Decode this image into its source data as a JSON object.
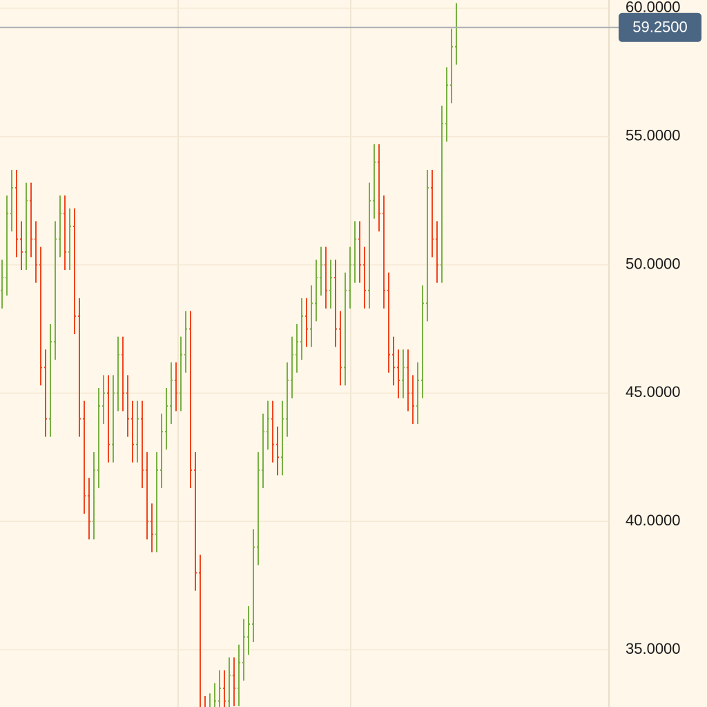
{
  "chart_data": {
    "type": "ohlc",
    "ylim": [
      32.77,
      60.32
    ],
    "yticks": [
      {
        "value": 35,
        "label": "35.0000"
      },
      {
        "value": 40,
        "label": "40.0000"
      },
      {
        "value": 45,
        "label": "45.0000"
      },
      {
        "value": 50,
        "label": "50.0000"
      },
      {
        "value": 55,
        "label": "55.0000"
      },
      {
        "value": 60,
        "label": "60.0000"
      }
    ],
    "grid": true,
    "up_color": "#78b043",
    "down_color": "#f0451f",
    "last_price": {
      "value": 59.25,
      "label": "59.2500"
    },
    "series": [
      {
        "values": [
          [
            49,
            50.2,
            48.3,
            49.5
          ],
          [
            49.5,
            52.7,
            48.8,
            52
          ],
          [
            52,
            53.7,
            51.3,
            53
          ],
          [
            53,
            53.7,
            50.3,
            51
          ],
          [
            51,
            51.7,
            49.8,
            50.5
          ],
          [
            50.5,
            53.2,
            49.8,
            52.5
          ],
          [
            52.5,
            53.2,
            50.3,
            51
          ],
          [
            51,
            51.7,
            49.3,
            50
          ],
          [
            50,
            50.7,
            45.3,
            46
          ],
          [
            46,
            46.7,
            43.3,
            44
          ],
          [
            44,
            47.7,
            43.3,
            47
          ],
          [
            47,
            51.7,
            46.3,
            51
          ],
          [
            51,
            52.7,
            50.3,
            52
          ],
          [
            52,
            52.7,
            49.8,
            50.5
          ],
          [
            50.5,
            52.2,
            49.8,
            51.5
          ],
          [
            51.5,
            52.2,
            47.3,
            48
          ],
          [
            48,
            48.7,
            43.3,
            44
          ],
          [
            44,
            44.7,
            40.3,
            41
          ],
          [
            41,
            41.7,
            39.3,
            40
          ],
          [
            40,
            42.7,
            39.3,
            42
          ],
          [
            42,
            45.2,
            41.3,
            44.5
          ],
          [
            44.5,
            45.7,
            43.8,
            45
          ],
          [
            45,
            45.7,
            42.3,
            43
          ],
          [
            43,
            45.7,
            42.3,
            45
          ],
          [
            45,
            47.2,
            44.3,
            46.5
          ],
          [
            46.5,
            47.2,
            44.3,
            45
          ],
          [
            45,
            45.7,
            43.3,
            44
          ],
          [
            44,
            44.7,
            42.3,
            43
          ],
          [
            43,
            44.7,
            42.3,
            44
          ],
          [
            44,
            44.7,
            41.3,
            42
          ],
          [
            42,
            42.7,
            39.3,
            40
          ],
          [
            40,
            40.7,
            38.8,
            39.5
          ],
          [
            39.5,
            42.7,
            38.8,
            42
          ],
          [
            42,
            44.2,
            41.3,
            43.5
          ],
          [
            43.5,
            45.2,
            42.8,
            44.5
          ],
          [
            44.5,
            46.2,
            43.8,
            45.5
          ],
          [
            45.5,
            46.2,
            44.3,
            45
          ],
          [
            45,
            47.2,
            44.3,
            46.5
          ],
          [
            46.5,
            48.2,
            45.8,
            47.5
          ],
          [
            47.5,
            48.2,
            41.3,
            42
          ],
          [
            42,
            42.7,
            37.3,
            38
          ],
          [
            38,
            38.7,
            31.8,
            32.5
          ],
          [
            32.5,
            33.2,
            31.6,
            32.3
          ],
          [
            32.3,
            33.3,
            31.6,
            32.6
          ],
          [
            32.6,
            33.7,
            31.9,
            33
          ],
          [
            33,
            34.2,
            32.3,
            33.5
          ],
          [
            33.5,
            34.2,
            32.3,
            33
          ],
          [
            33,
            34.7,
            32.3,
            34
          ],
          [
            34,
            34.7,
            32.8,
            33.5
          ],
          [
            33.5,
            35.2,
            32.8,
            34.5
          ],
          [
            34.5,
            36.2,
            33.8,
            35.5
          ],
          [
            35.5,
            36.7,
            34.8,
            36
          ],
          [
            36,
            39.7,
            35.3,
            39
          ],
          [
            39,
            42.7,
            38.3,
            42
          ],
          [
            42,
            44.2,
            41.3,
            43.5
          ],
          [
            43.5,
            44.7,
            42.8,
            44
          ],
          [
            44,
            44.7,
            42.3,
            43
          ],
          [
            43,
            43.7,
            41.8,
            42.5
          ],
          [
            42.5,
            44.7,
            41.8,
            44
          ],
          [
            44,
            46.2,
            43.3,
            45.5
          ],
          [
            45.5,
            47.2,
            44.8,
            46.5
          ],
          [
            46.5,
            47.7,
            45.8,
            47
          ],
          [
            47,
            48.7,
            46.3,
            48
          ],
          [
            48,
            48.7,
            46.8,
            47.5
          ],
          [
            47.5,
            49.2,
            46.8,
            48.5
          ],
          [
            48.5,
            50.2,
            47.8,
            49.5
          ],
          [
            49.5,
            50.7,
            48.8,
            50
          ],
          [
            50,
            50.7,
            48.3,
            49
          ],
          [
            49,
            50.2,
            48.3,
            49.5
          ],
          [
            49.5,
            50.2,
            46.8,
            47.5
          ],
          [
            47.5,
            48.2,
            45.3,
            46
          ],
          [
            46,
            49.7,
            45.3,
            49
          ],
          [
            49,
            50.7,
            48.3,
            50
          ],
          [
            50,
            51.7,
            49.3,
            51
          ],
          [
            51,
            51.7,
            49.3,
            50
          ],
          [
            50,
            50.7,
            48.3,
            49
          ],
          [
            49,
            53.2,
            48.3,
            52.5
          ],
          [
            52.5,
            54.7,
            51.8,
            54
          ],
          [
            54,
            54.7,
            51.3,
            52
          ],
          [
            52,
            52.7,
            48.3,
            49
          ],
          [
            49,
            49.7,
            45.8,
            46.5
          ],
          [
            46.5,
            47.2,
            45.3,
            46
          ],
          [
            46,
            46.7,
            44.8,
            45.5
          ],
          [
            45.5,
            46.7,
            44.8,
            46
          ],
          [
            46,
            46.7,
            44.3,
            45
          ],
          [
            45,
            45.7,
            43.8,
            44.5
          ],
          [
            44.5,
            46.2,
            43.8,
            45.5
          ],
          [
            45.5,
            49.2,
            44.8,
            48.5
          ],
          [
            48.5,
            53.7,
            47.8,
            53
          ],
          [
            53,
            53.7,
            50.3,
            51
          ],
          [
            51,
            51.7,
            49.3,
            50
          ],
          [
            50,
            56.2,
            49.3,
            55.5
          ],
          [
            55.5,
            57.7,
            54.8,
            57
          ],
          [
            57,
            59.2,
            56.3,
            58.5
          ],
          [
            58.5,
            60.2,
            57.8,
            59.25
          ]
        ]
      }
    ]
  }
}
